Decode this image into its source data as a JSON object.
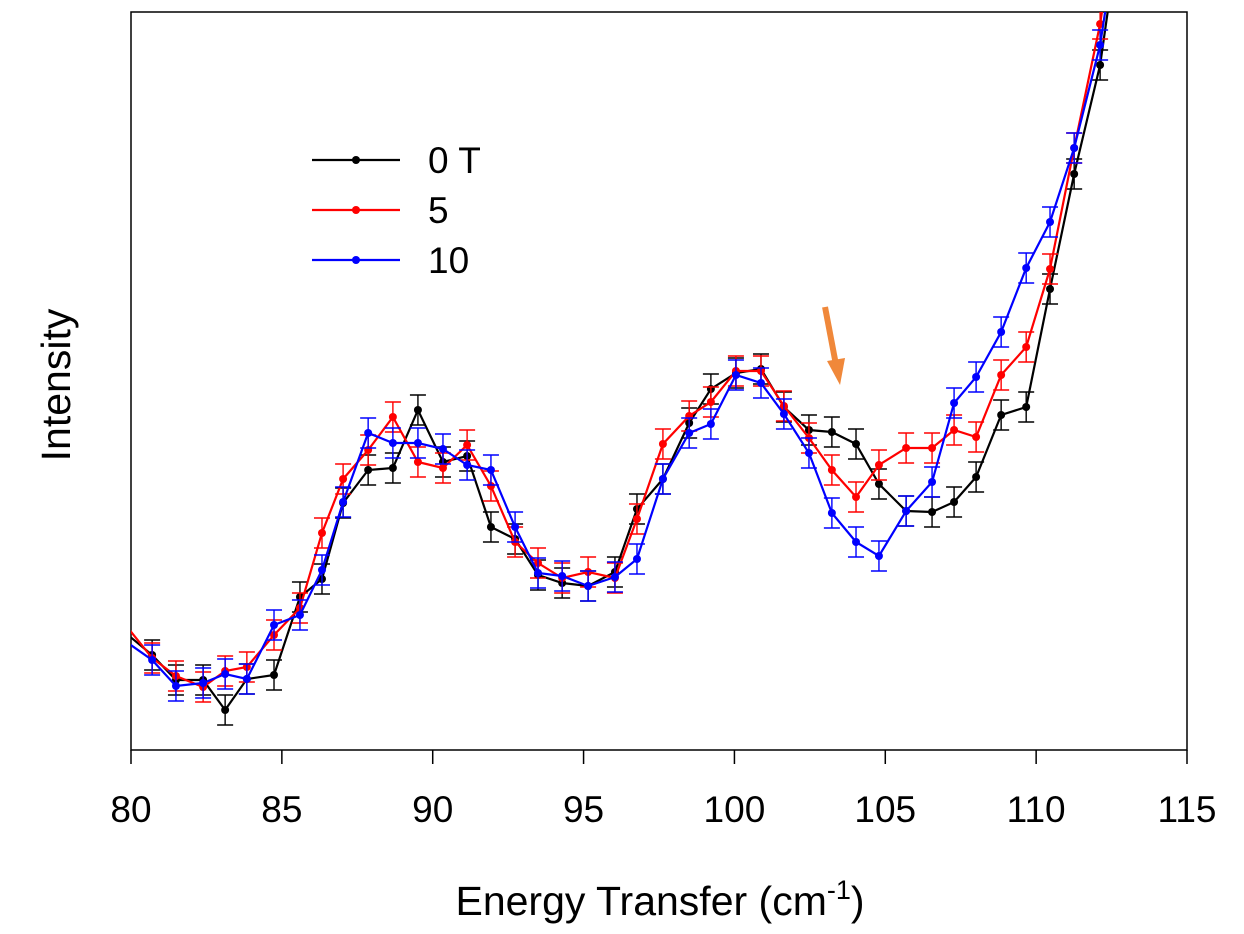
{
  "chart_data": {
    "type": "line",
    "title": "",
    "xlabel_main": "Energy Transfer (cm",
    "xlabel_sup": "-1",
    "xlabel_end": ")",
    "ylabel": "Intensity",
    "xlim": [
      80,
      115
    ],
    "ylim": [
      0,
      73.8
    ],
    "xticks": [
      "80",
      "85",
      "90",
      "95",
      "100",
      "105",
      "110",
      "115"
    ],
    "xtick_values": [
      80,
      85,
      90,
      95,
      100,
      105,
      110,
      115
    ],
    "grid": false,
    "legend_position": "upper-left",
    "x": [
      80.7,
      81.49,
      82.39,
      83.12,
      83.84,
      84.74,
      85.6,
      86.33,
      87.03,
      87.86,
      88.68,
      89.51,
      90.34,
      91.14,
      91.93,
      92.73,
      93.49,
      94.29,
      95.15,
      96.04,
      96.77,
      97.63,
      98.5,
      99.22,
      100.05,
      100.88,
      101.64,
      102.47,
      103.23,
      104.03,
      104.79,
      105.69,
      106.55,
      107.28,
      108.01,
      108.84,
      109.67,
      110.46,
      111.26,
      112.12
    ],
    "edge_points": {
      "x_left": 79.9,
      "x_right": 112.9
    },
    "series": [
      {
        "name": "0 T",
        "color": "#000000",
        "error": 1.5,
        "edge_values": [
          11.5,
          85
        ],
        "values": [
          9.5,
          7.0,
          7.0,
          4.0,
          7.1,
          7.5,
          15.3,
          17.1,
          24.7,
          28.0,
          28.2,
          34.0,
          28.8,
          29.4,
          22.3,
          21.1,
          17.5,
          16.7,
          16.4,
          17.8,
          24.1,
          27.1,
          32.7,
          36.1,
          37.7,
          38.1,
          34.3,
          32.0,
          31.8,
          30.6,
          26.6,
          23.9,
          23.8,
          24.8,
          27.3,
          33.5,
          34.3,
          46.1,
          57.6,
          68.5
        ]
      },
      {
        "name": "5",
        "color": "#ff0000",
        "error": 1.5,
        "edge_values": [
          12.2,
          88
        ],
        "values": [
          9.2,
          7.4,
          6.3,
          7.9,
          8.3,
          11.5,
          14.2,
          21.7,
          27.1,
          30.0,
          33.3,
          28.8,
          28.2,
          30.5,
          26.4,
          20.8,
          18.7,
          17.2,
          17.8,
          17.2,
          23.1,
          30.6,
          33.4,
          34.8,
          37.9,
          37.9,
          34.4,
          31.2,
          28.0,
          25.3,
          28.5,
          30.2,
          30.2,
          32.0,
          31.3,
          37.5,
          40.3,
          48.1,
          60.2,
          72.6
        ]
      },
      {
        "name": "10",
        "color": "#0000ff",
        "error": 1.5,
        "edge_values": [
          10.7,
          86
        ],
        "values": [
          9.0,
          6.4,
          6.7,
          7.6,
          7.1,
          12.5,
          13.5,
          18.0,
          24.8,
          31.7,
          30.7,
          30.7,
          30.1,
          28.5,
          28.0,
          22.3,
          17.7,
          17.4,
          16.4,
          17.3,
          19.1,
          27.1,
          31.7,
          32.6,
          37.5,
          36.7,
          33.6,
          29.7,
          23.7,
          20.8,
          19.4,
          23.9,
          26.8,
          34.7,
          37.3,
          41.8,
          48.2,
          52.8,
          60.2,
          70.5
        ]
      }
    ],
    "annotations": [
      {
        "type": "arrow",
        "x": 103.5,
        "y": 36.5,
        "color": "#f0883a"
      }
    ]
  }
}
